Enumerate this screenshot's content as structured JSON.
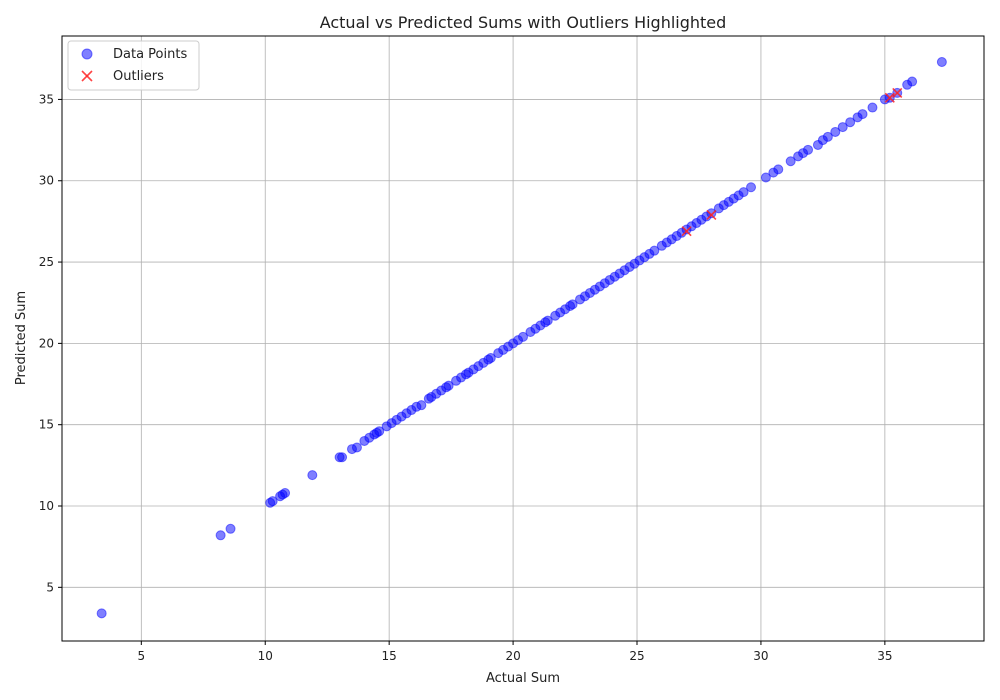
{
  "chart_data": {
    "type": "scatter",
    "title": "Actual vs Predicted Sums with Outliers Highlighted",
    "xlabel": "Actual Sum",
    "ylabel": "Predicted Sum",
    "xlim": [
      1.8,
      39.0
    ],
    "ylim": [
      1.7,
      38.9
    ],
    "xticks": [
      5,
      10,
      15,
      20,
      25,
      30,
      35
    ],
    "yticks": [
      5,
      10,
      15,
      20,
      25,
      30,
      35
    ],
    "grid": true,
    "legend_position": "top-left",
    "series": [
      {
        "name": "Data Points",
        "marker": "circle",
        "color": "#0000ff",
        "points": [
          [
            3.4,
            3.4
          ],
          [
            8.2,
            8.2
          ],
          [
            8.6,
            8.6
          ],
          [
            10.2,
            10.2
          ],
          [
            10.3,
            10.3
          ],
          [
            10.6,
            10.6
          ],
          [
            10.7,
            10.7
          ],
          [
            10.8,
            10.8
          ],
          [
            11.9,
            11.9
          ],
          [
            13.0,
            13.0
          ],
          [
            13.1,
            13.0
          ],
          [
            13.5,
            13.5
          ],
          [
            13.7,
            13.6
          ],
          [
            14.0,
            14.0
          ],
          [
            14.2,
            14.2
          ],
          [
            14.4,
            14.4
          ],
          [
            14.5,
            14.5
          ],
          [
            14.6,
            14.6
          ],
          [
            14.9,
            14.9
          ],
          [
            15.1,
            15.1
          ],
          [
            15.3,
            15.3
          ],
          [
            15.5,
            15.5
          ],
          [
            15.7,
            15.7
          ],
          [
            15.9,
            15.9
          ],
          [
            16.1,
            16.1
          ],
          [
            16.3,
            16.2
          ],
          [
            16.6,
            16.6
          ],
          [
            16.7,
            16.7
          ],
          [
            16.9,
            16.9
          ],
          [
            17.1,
            17.1
          ],
          [
            17.3,
            17.3
          ],
          [
            17.4,
            17.4
          ],
          [
            17.7,
            17.7
          ],
          [
            17.9,
            17.9
          ],
          [
            18.1,
            18.1
          ],
          [
            18.2,
            18.2
          ],
          [
            18.4,
            18.4
          ],
          [
            18.6,
            18.6
          ],
          [
            18.8,
            18.8
          ],
          [
            19.0,
            19.0
          ],
          [
            19.1,
            19.1
          ],
          [
            19.4,
            19.4
          ],
          [
            19.6,
            19.6
          ],
          [
            19.8,
            19.8
          ],
          [
            20.0,
            20.0
          ],
          [
            20.2,
            20.2
          ],
          [
            20.4,
            20.4
          ],
          [
            20.7,
            20.7
          ],
          [
            20.9,
            20.9
          ],
          [
            21.1,
            21.1
          ],
          [
            21.3,
            21.3
          ],
          [
            21.4,
            21.4
          ],
          [
            21.7,
            21.7
          ],
          [
            21.9,
            21.9
          ],
          [
            22.1,
            22.1
          ],
          [
            22.3,
            22.3
          ],
          [
            22.4,
            22.4
          ],
          [
            22.7,
            22.7
          ],
          [
            22.9,
            22.9
          ],
          [
            23.1,
            23.1
          ],
          [
            23.3,
            23.3
          ],
          [
            23.5,
            23.5
          ],
          [
            23.7,
            23.7
          ],
          [
            23.9,
            23.9
          ],
          [
            24.1,
            24.1
          ],
          [
            24.3,
            24.3
          ],
          [
            24.5,
            24.5
          ],
          [
            24.7,
            24.7
          ],
          [
            24.9,
            24.9
          ],
          [
            25.1,
            25.1
          ],
          [
            25.3,
            25.3
          ],
          [
            25.5,
            25.5
          ],
          [
            25.7,
            25.7
          ],
          [
            26.0,
            26.0
          ],
          [
            26.2,
            26.2
          ],
          [
            26.4,
            26.4
          ],
          [
            26.6,
            26.6
          ],
          [
            26.8,
            26.8
          ],
          [
            27.0,
            27.0
          ],
          [
            27.2,
            27.2
          ],
          [
            27.4,
            27.4
          ],
          [
            27.6,
            27.6
          ],
          [
            27.8,
            27.8
          ],
          [
            28.0,
            28.0
          ],
          [
            28.3,
            28.3
          ],
          [
            28.5,
            28.5
          ],
          [
            28.7,
            28.7
          ],
          [
            28.9,
            28.9
          ],
          [
            29.1,
            29.1
          ],
          [
            29.3,
            29.3
          ],
          [
            29.6,
            29.6
          ],
          [
            30.2,
            30.2
          ],
          [
            30.5,
            30.5
          ],
          [
            30.7,
            30.7
          ],
          [
            31.2,
            31.2
          ],
          [
            31.5,
            31.5
          ],
          [
            31.7,
            31.7
          ],
          [
            31.9,
            31.9
          ],
          [
            32.3,
            32.2
          ],
          [
            32.5,
            32.5
          ],
          [
            32.7,
            32.7
          ],
          [
            33.0,
            33.0
          ],
          [
            33.3,
            33.3
          ],
          [
            33.6,
            33.6
          ],
          [
            33.9,
            33.9
          ],
          [
            34.1,
            34.1
          ],
          [
            34.5,
            34.5
          ],
          [
            35.0,
            35.0
          ],
          [
            35.2,
            35.1
          ],
          [
            35.5,
            35.4
          ],
          [
            35.9,
            35.9
          ],
          [
            36.1,
            36.1
          ],
          [
            37.3,
            37.3
          ]
        ]
      },
      {
        "name": "Outliers",
        "marker": "x",
        "color": "#ff2222",
        "points": [
          [
            27.0,
            26.9
          ],
          [
            28.0,
            27.9
          ],
          [
            35.2,
            35.1
          ],
          [
            35.5,
            35.4
          ]
        ]
      }
    ]
  }
}
